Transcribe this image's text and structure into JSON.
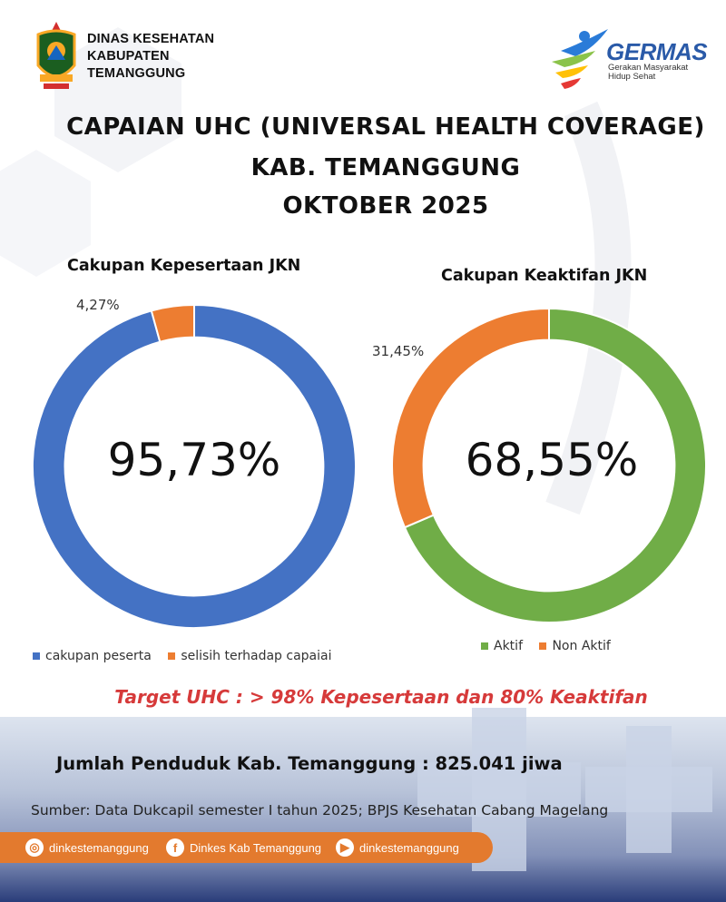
{
  "header": {
    "org_line1": "DINAS KESEHATAN",
    "org_line2": "KABUPATEN",
    "org_line3": "TEMANGGUNG",
    "germas_title": "GERMAS",
    "germas_sub1": "Gerakan Masyarakat",
    "germas_sub2": "Hidup Sehat"
  },
  "title": {
    "line1": "CAPAIAN UHC (UNIVERSAL HEALTH COVERAGE)",
    "line2": "KAB. TEMANGGUNG",
    "line3": "OKTOBER 2025"
  },
  "colors": {
    "blue": "#4472c4",
    "orange": "#ed7d31",
    "green": "#70ad47",
    "target_red": "#d63a3a",
    "social_bar": "#e37a2e"
  },
  "chart_data": [
    {
      "type": "pie",
      "title": "Cakupan Kepesertaan JKN",
      "center_label": "95,73%",
      "small_label": "4,27%",
      "categories": [
        "cakupan peserta",
        "selisih terhadap capaian"
      ],
      "legend_visible": [
        "cakupan peserta",
        "selisih terhadap capaiai"
      ],
      "values": [
        95.73,
        4.27
      ],
      "colors": [
        "#4472c4",
        "#ed7d31"
      ]
    },
    {
      "type": "pie",
      "title": "Cakupan Keaktifan JKN",
      "center_label": "68,55%",
      "small_label": "31,45%",
      "categories": [
        "Aktif",
        "Non Aktif"
      ],
      "legend_visible": [
        "Aktif",
        "Non Aktif"
      ],
      "values": [
        68.55,
        31.45
      ],
      "colors": [
        "#70ad47",
        "#ed7d31"
      ]
    }
  ],
  "target_text": "Target UHC :  > 98% Kepesertaan dan 80% Keaktifan",
  "penduduk_text": "Jumlah Penduduk Kab. Temanggung : 825.041 jiwa",
  "sumber_text": "Sumber: Data Dukcapil semester I tahun 2025; BPJS Kesehatan Cabang Magelang",
  "social": {
    "instagram": "dinkestemanggung",
    "facebook": "Dinkes Kab Temanggung",
    "youtube": "dinkestemanggung"
  }
}
